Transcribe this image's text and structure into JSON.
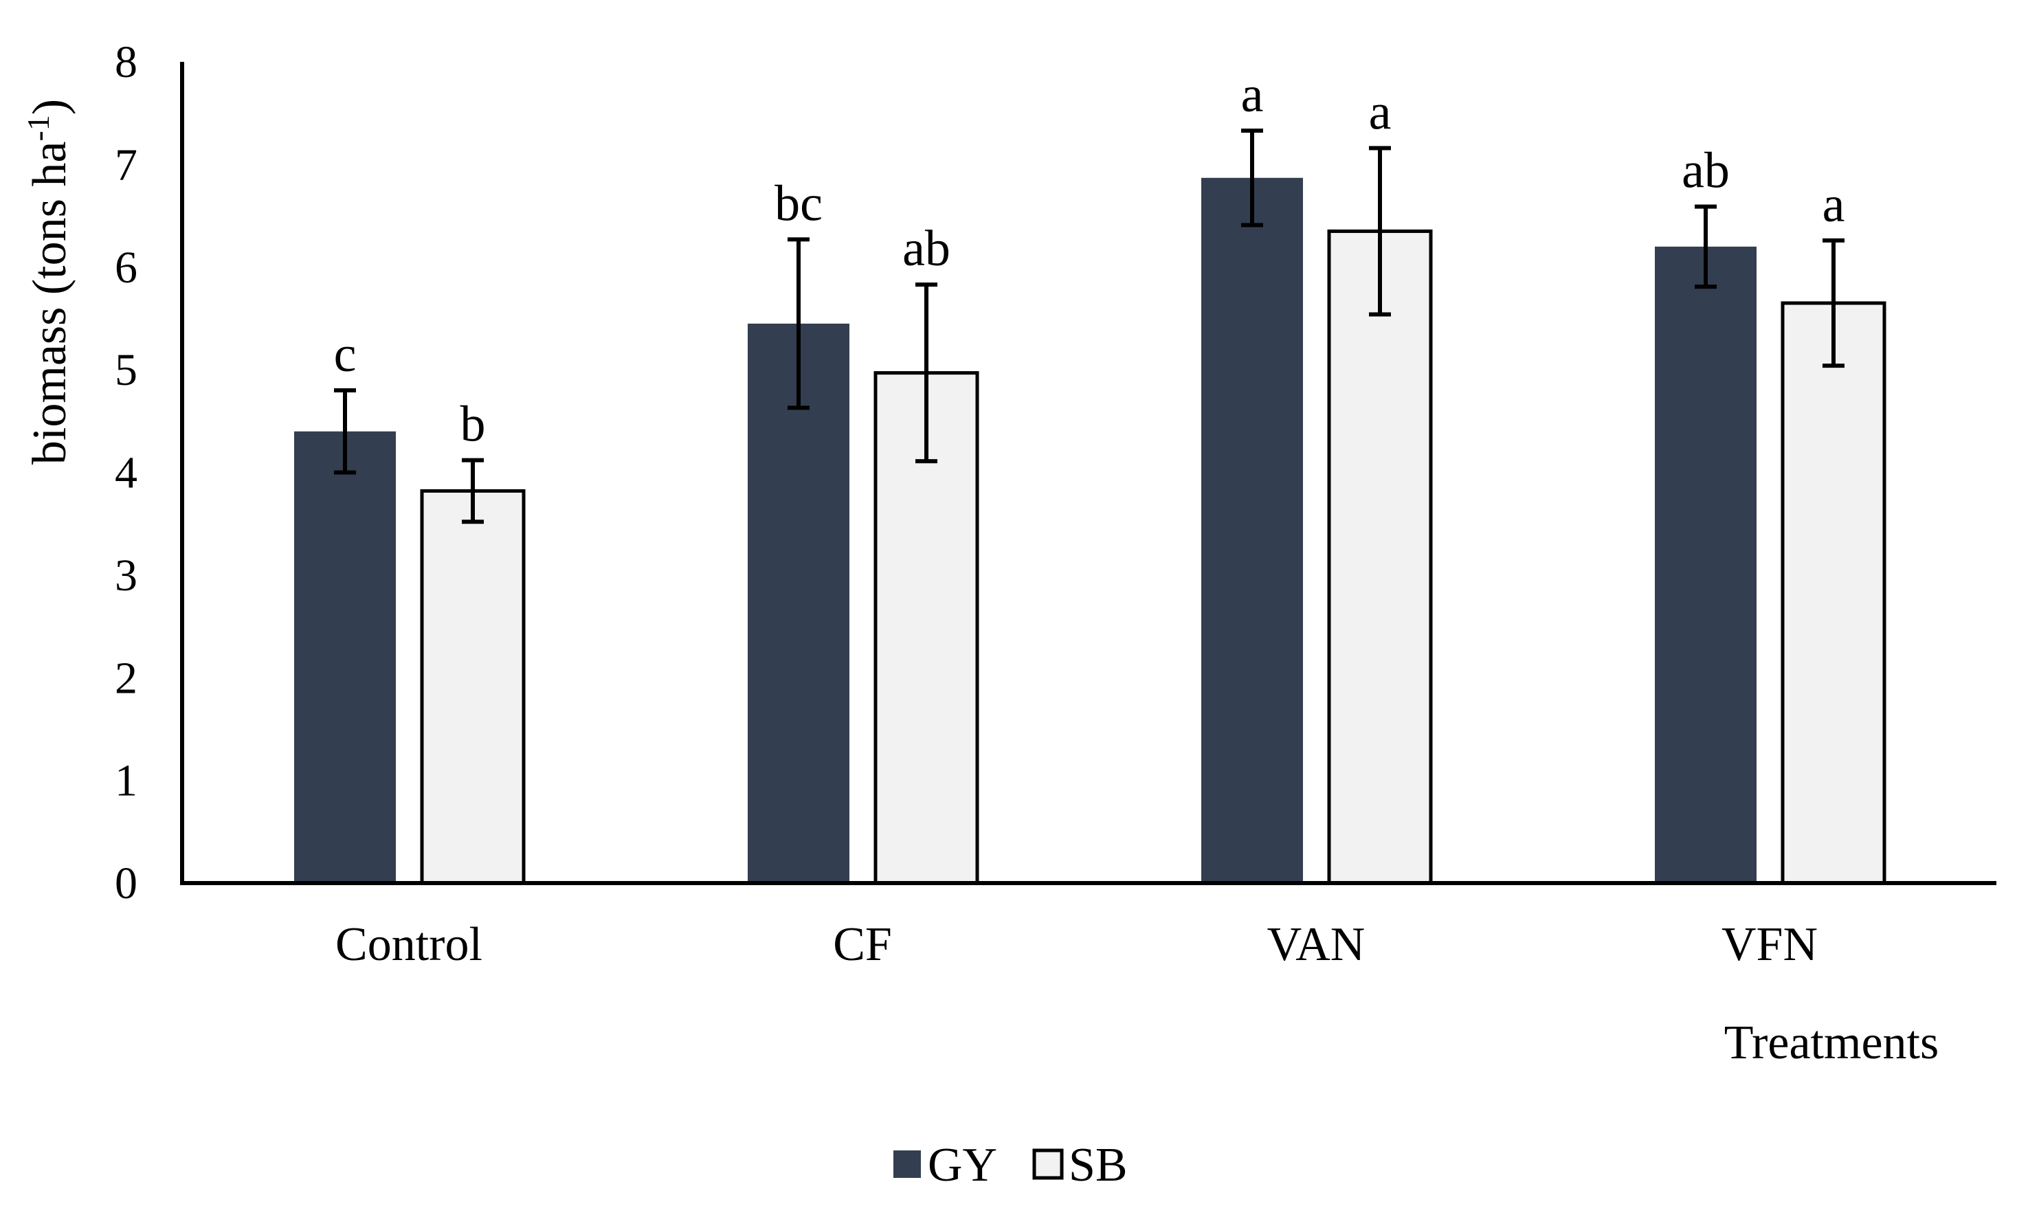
{
  "chart_data": {
    "type": "bar",
    "title": "",
    "xlabel": "Treatments",
    "ylabel": "biomass (tons ha-1)",
    "ylabel_main": "biomass (tons ha",
    "ylabel_sup": "-1",
    "ylabel_close": ")",
    "ylim": [
      0,
      8
    ],
    "yticks": [
      "0",
      "1",
      "2",
      "3",
      "4",
      "5",
      "6",
      "7",
      "8"
    ],
    "categories": [
      "Control",
      "CF",
      "VAN",
      "VFN"
    ],
    "series": [
      {
        "name": "GY",
        "color": "#333f50",
        "values": [
          4.4,
          5.45,
          6.87,
          6.2
        ],
        "errors": [
          0.4,
          0.82,
          0.46,
          0.39
        ],
        "labels": [
          "c",
          "bc",
          "a",
          "ab"
        ]
      },
      {
        "name": "SB",
        "color": "#f2f2f2",
        "values": [
          3.82,
          4.97,
          6.35,
          5.65
        ],
        "errors": [
          0.3,
          0.86,
          0.81,
          0.61
        ],
        "labels": [
          "b",
          "ab",
          "a",
          "a"
        ]
      }
    ],
    "grid": false,
    "legend": "bottom-center"
  }
}
